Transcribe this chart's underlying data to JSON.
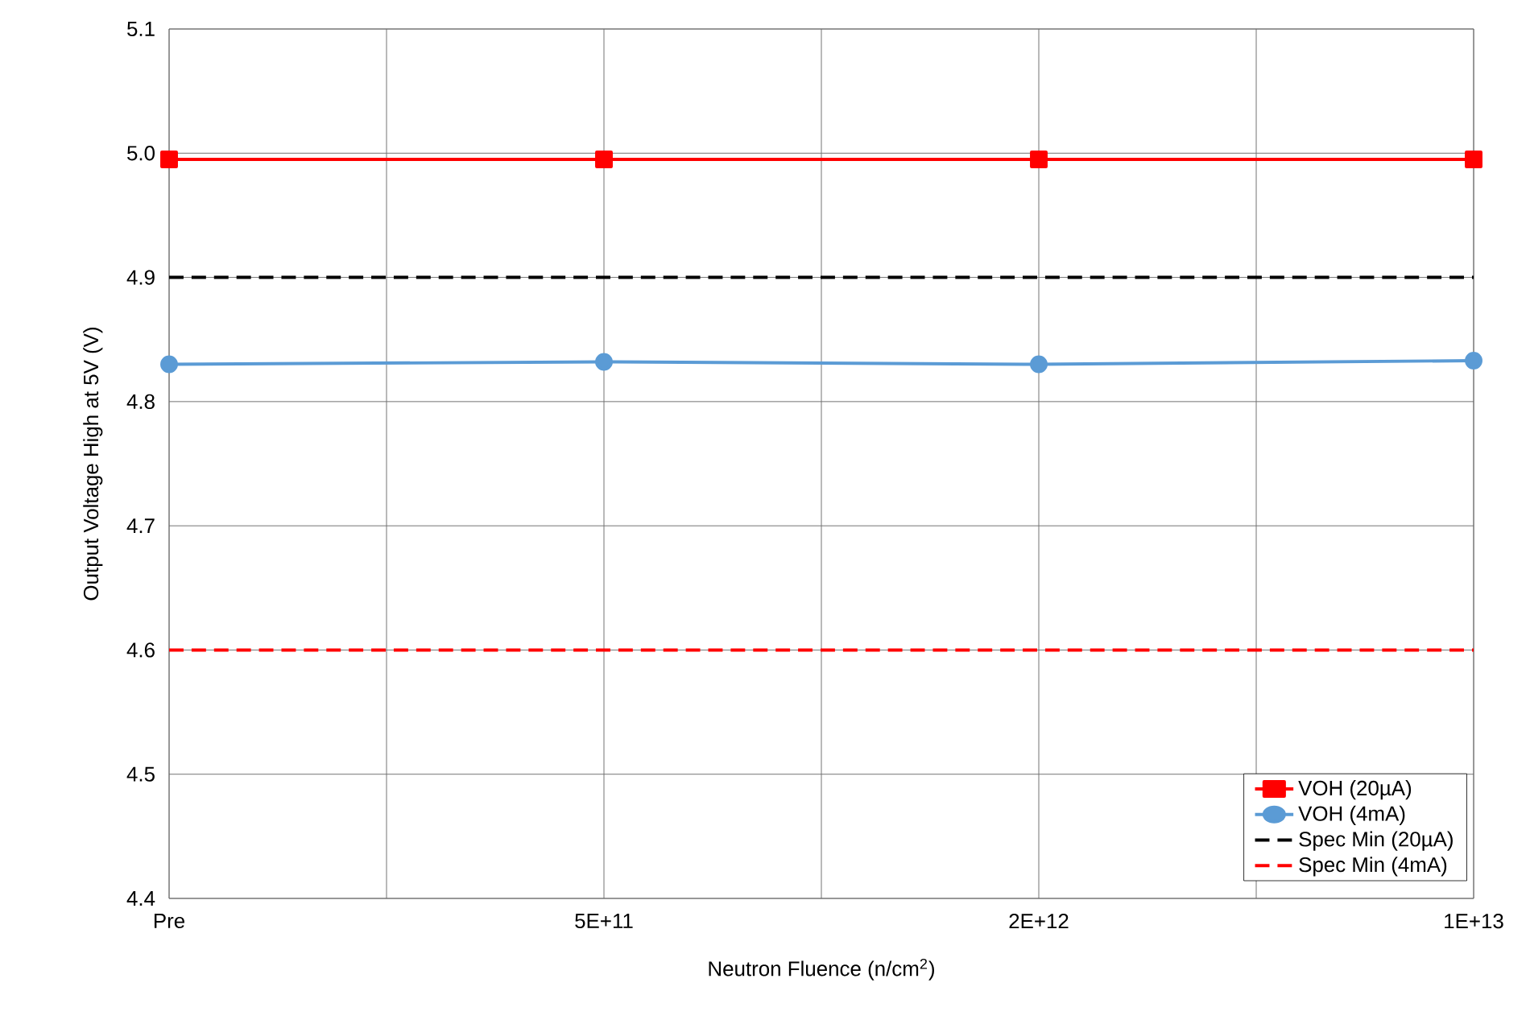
{
  "chart_data": {
    "type": "line",
    "xlabel": "Neutron Fluence (n/cm$^{2}$)",
    "ylabel": "Output Voltage High at 5V (V)",
    "categories": [
      "Pre",
      "5E+11",
      "2E+12",
      "1E+13"
    ],
    "series": [
      {
        "name": "VOH (20µA)",
        "color": "#ff0000",
        "marker": "square",
        "line_style": "solid",
        "values": [
          4.995,
          4.995,
          4.995,
          4.995
        ]
      },
      {
        "name": "VOH (4mA)",
        "color": "#5b9bd5",
        "marker": "circle",
        "line_style": "solid",
        "values": [
          4.83,
          4.832,
          4.83,
          4.833
        ]
      },
      {
        "name": "Spec Min (20µA)",
        "color": "#000000",
        "marker": "none",
        "line_style": "dashed",
        "values": [
          4.9,
          4.9,
          4.9,
          4.9
        ]
      },
      {
        "name": "Spec Min (4mA)",
        "color": "#ff0000",
        "marker": "none",
        "line_style": "dashed",
        "values": [
          4.6,
          4.6,
          4.6,
          4.6
        ]
      }
    ],
    "ylim": [
      4.4,
      5.1
    ],
    "yticks": [
      {
        "value": 4.4,
        "label": "4.4"
      },
      {
        "value": 4.5,
        "label": "4.5"
      },
      {
        "value": 4.6,
        "label": "4.6"
      },
      {
        "value": 4.7,
        "label": "4.7"
      },
      {
        "value": 4.8,
        "label": "4.8"
      },
      {
        "value": 4.9,
        "label": "4.9"
      },
      {
        "value": 5.0,
        "label": "5.0"
      },
      {
        "value": 5.1,
        "label": "5.1"
      }
    ],
    "grid": true,
    "legend": "bottom right"
  }
}
